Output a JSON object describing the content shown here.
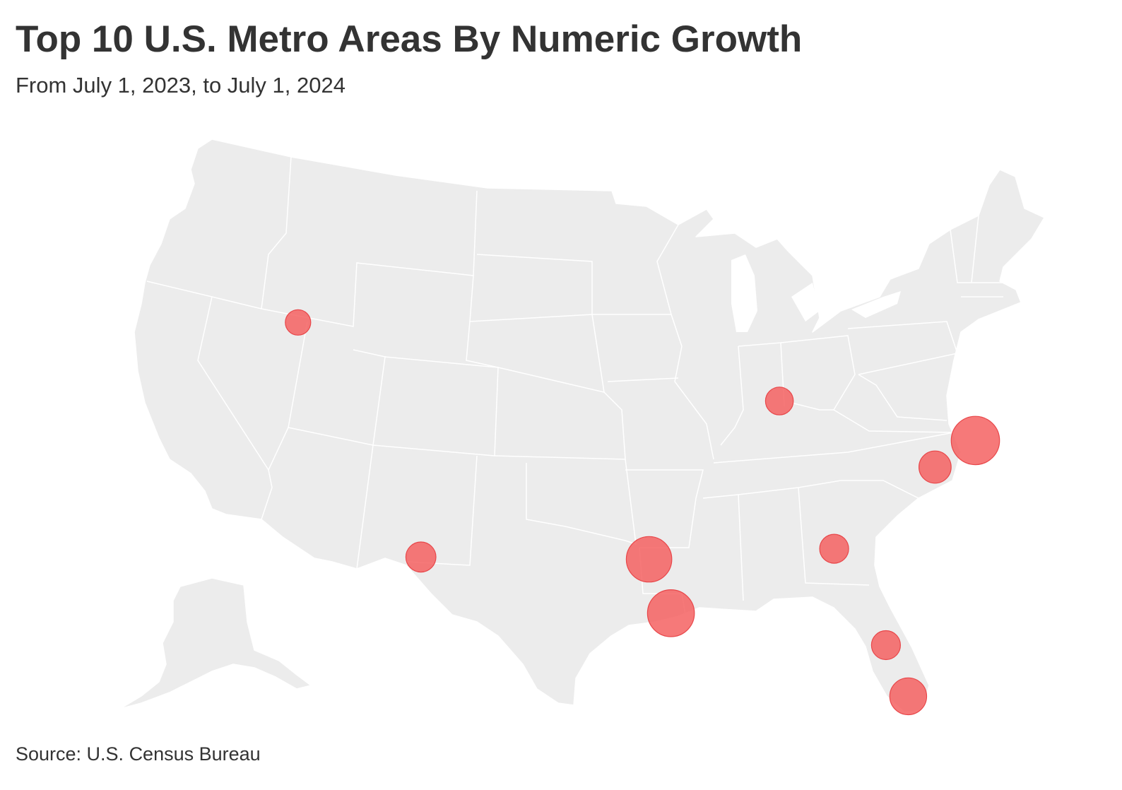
{
  "header": {
    "title": "Top 10 U.S. Metro Areas By Numeric Growth",
    "subtitle": "From July 1, 2023, to July 1, 2024"
  },
  "footer": {
    "source": "Source: U.S. Census Bureau"
  },
  "map": {
    "region": "United States (contiguous) with Alaska inset",
    "land_color": "#ececec",
    "border_color": "#ffffff",
    "bubble_color": "#f45b5b",
    "bubble_stroke": "#e8474a",
    "metros": [
      {
        "id": "seattle",
        "lat": 47.61,
        "lon": -122.33,
        "relative_growth": 1.0
      },
      {
        "id": "phoenix",
        "lat": 33.45,
        "lon": -112.07,
        "relative_growth": 1.4
      },
      {
        "id": "dallas-fort-worth",
        "lat": 32.78,
        "lon": -96.8,
        "relative_growth": 3.2
      },
      {
        "id": "houston",
        "lat": 29.76,
        "lon": -95.37,
        "relative_growth": 3.4
      },
      {
        "id": "chicago",
        "lat": 41.88,
        "lon": -87.63,
        "relative_growth": 1.2
      },
      {
        "id": "atlanta",
        "lat": 33.75,
        "lon": -84.39,
        "relative_growth": 1.3
      },
      {
        "id": "washington-dc",
        "lat": 38.91,
        "lon": -77.04,
        "relative_growth": 1.6
      },
      {
        "id": "new-york",
        "lat": 40.71,
        "lon": -74.01,
        "relative_growth": 3.6
      },
      {
        "id": "orlando",
        "lat": 28.54,
        "lon": -81.38,
        "relative_growth": 1.3
      },
      {
        "id": "miami",
        "lat": 25.76,
        "lon": -80.19,
        "relative_growth": 2.1
      }
    ]
  }
}
